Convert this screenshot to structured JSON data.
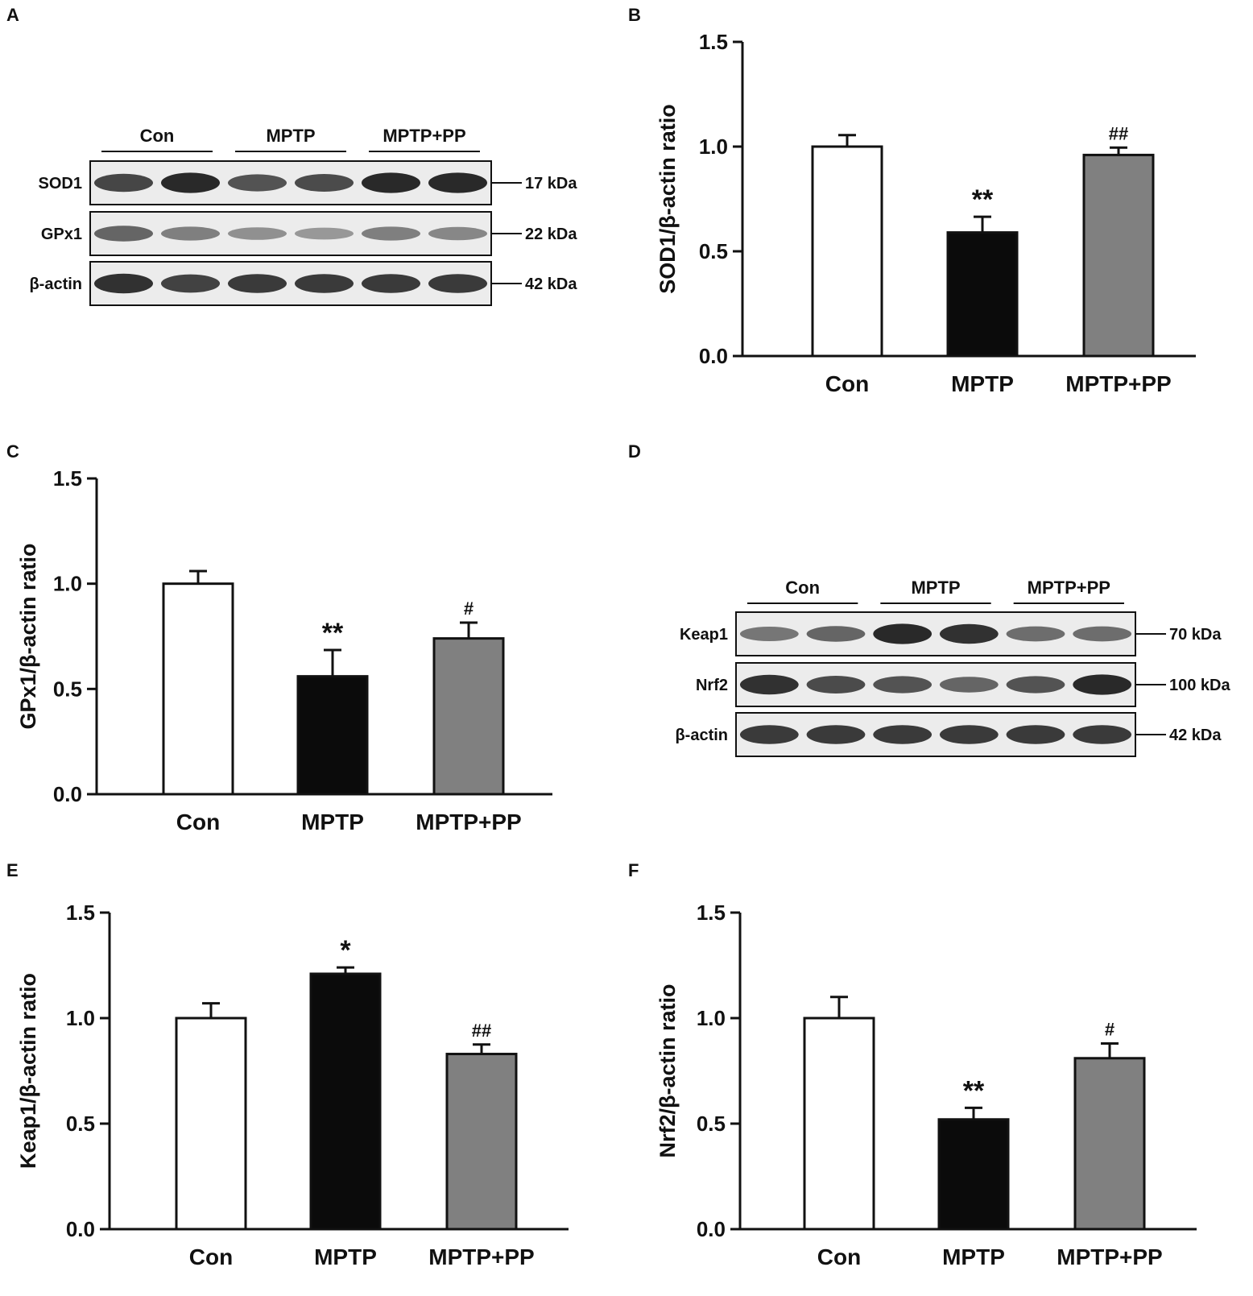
{
  "panels": [
    {
      "letter": "A"
    },
    {
      "letter": "B"
    },
    {
      "letter": "C"
    },
    {
      "letter": "D"
    },
    {
      "letter": "E"
    },
    {
      "letter": "F"
    }
  ],
  "blots": [
    {
      "groups": [
        "Con",
        "MPTP",
        "MPTP+PP"
      ],
      "rows": [
        {
          "label": "SOD1",
          "mw": "17 kDa",
          "intensity": [
            0.78,
            0.95,
            0.7,
            0.75,
            0.95,
            0.95
          ]
        },
        {
          "label": "GPx1",
          "mw": "22 kDa",
          "intensity": [
            0.6,
            0.45,
            0.35,
            0.3,
            0.45,
            0.4
          ]
        },
        {
          "label": "β-actin",
          "mw": "42 kDa",
          "intensity": [
            0.9,
            0.8,
            0.85,
            0.85,
            0.85,
            0.85
          ]
        }
      ]
    },
    {
      "groups": [
        "Con",
        "MPTP",
        "MPTP+PP"
      ],
      "rows": [
        {
          "label": "Keap1",
          "mw": "70 kDa",
          "intensity": [
            0.5,
            0.6,
            0.95,
            0.9,
            0.55,
            0.55
          ]
        },
        {
          "label": "Nrf2",
          "mw": "100 kDa",
          "intensity": [
            0.9,
            0.75,
            0.7,
            0.6,
            0.7,
            0.95
          ]
        },
        {
          "label": "β-actin",
          "mw": "42 kDa",
          "intensity": [
            0.85,
            0.85,
            0.85,
            0.85,
            0.85,
            0.85
          ]
        }
      ]
    }
  ],
  "chart_data": [
    {
      "type": "bar",
      "categories": [
        "Con",
        "MPTP",
        "MPTP+PP"
      ],
      "values": [
        1.0,
        0.59,
        0.96
      ],
      "errors": [
        0.055,
        0.075,
        0.035
      ],
      "annotations": [
        "",
        "**",
        "##"
      ],
      "bar_colors": [
        "#ffffff",
        "#0b0b0b",
        "#808080"
      ],
      "ylabel": "SOD1/β-actin ratio",
      "ylim": [
        0,
        1.5
      ],
      "yticks": [
        "0.0",
        "0.5",
        "1.0",
        "1.5"
      ]
    },
    {
      "type": "bar",
      "categories": [
        "Con",
        "MPTP",
        "MPTP+PP"
      ],
      "values": [
        1.0,
        0.56,
        0.74
      ],
      "errors": [
        0.06,
        0.125,
        0.075
      ],
      "annotations": [
        "",
        "**",
        "#"
      ],
      "bar_colors": [
        "#ffffff",
        "#0b0b0b",
        "#808080"
      ],
      "ylabel": "GPx1/β-actin ratio",
      "ylim": [
        0,
        1.5
      ],
      "yticks": [
        "0.0",
        "0.5",
        "1.0",
        "1.5"
      ]
    },
    {
      "type": "bar",
      "categories": [
        "Con",
        "MPTP",
        "MPTP+PP"
      ],
      "values": [
        1.0,
        1.21,
        0.83
      ],
      "errors": [
        0.07,
        0.03,
        0.045
      ],
      "annotations": [
        "",
        "*",
        "##"
      ],
      "bar_colors": [
        "#ffffff",
        "#0b0b0b",
        "#808080"
      ],
      "ylabel": "Keap1/β-actin ratio",
      "ylim": [
        0,
        1.5
      ],
      "yticks": [
        "0.0",
        "0.5",
        "1.0",
        "1.5"
      ]
    },
    {
      "type": "bar",
      "categories": [
        "Con",
        "MPTP",
        "MPTP+PP"
      ],
      "values": [
        1.0,
        0.52,
        0.81
      ],
      "errors": [
        0.1,
        0.055,
        0.07
      ],
      "annotations": [
        "",
        "**",
        "#"
      ],
      "bar_colors": [
        "#ffffff",
        "#0b0b0b",
        "#808080"
      ],
      "ylabel": "Nrf2/β-actin ratio",
      "ylim": [
        0,
        1.5
      ],
      "yticks": [
        "0.0",
        "0.5",
        "1.0",
        "1.5"
      ]
    }
  ]
}
